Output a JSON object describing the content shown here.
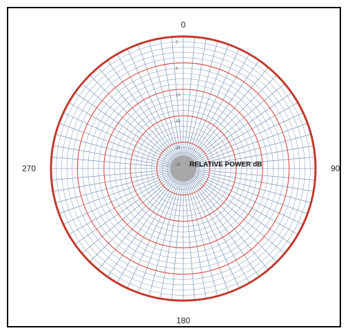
{
  "chart_data": {
    "type": "polar",
    "angle_labels": {
      "top": "0",
      "right": "90",
      "bottom": "180",
      "left": "270"
    },
    "ring_labels": [
      "0",
      "5",
      "10",
      "15",
      "20",
      "25"
    ],
    "center_title": "RELATIVE POWER dB",
    "r_range": [
      0,
      25
    ],
    "grid": true,
    "colors": {
      "grid_radial": "#5c7fa8",
      "grid_ring": "#8fa3bd",
      "ring_major": "#d9534f",
      "ring_outer": "#c0392b",
      "center_fill": "#9a9a9a"
    }
  }
}
